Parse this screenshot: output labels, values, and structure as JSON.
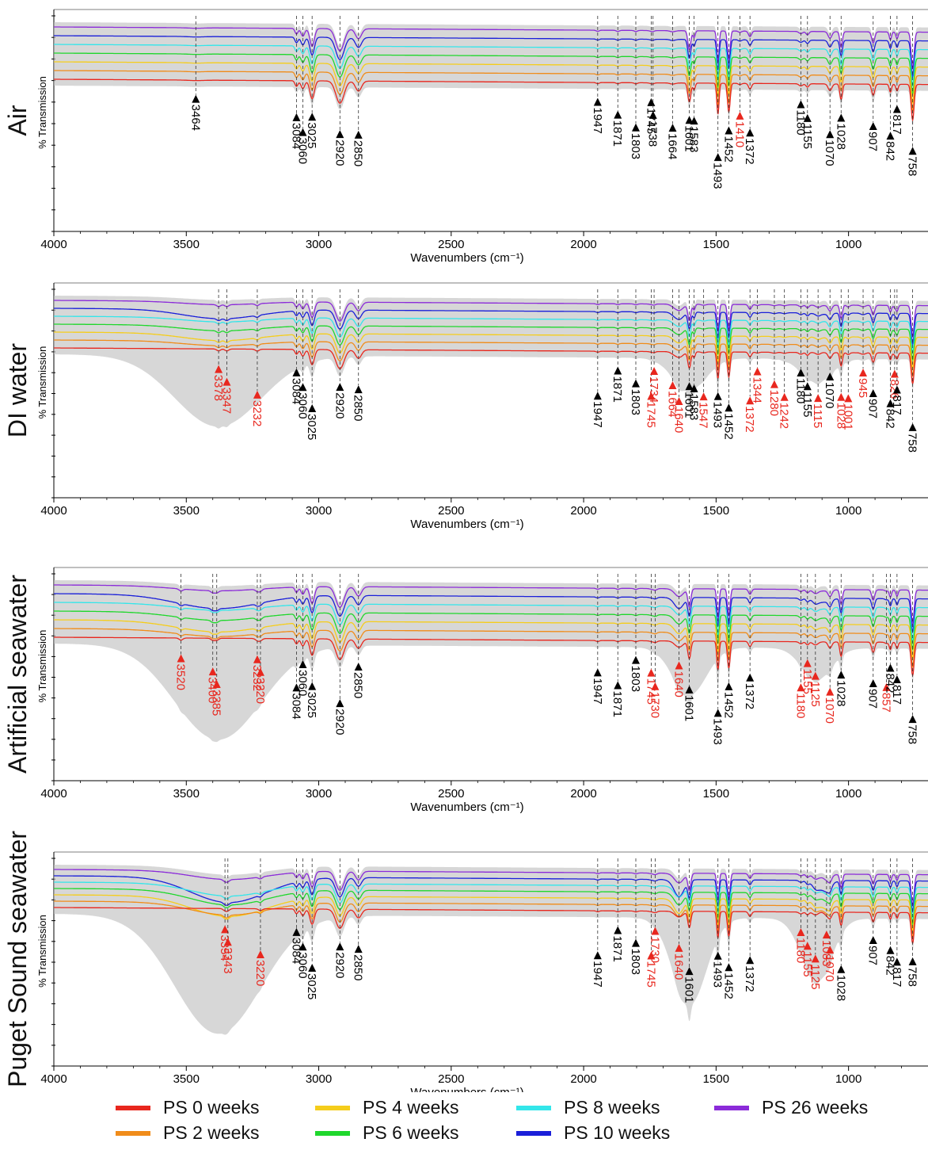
{
  "xlabel": "Wavenumbers (cm⁻¹)",
  "ylabel": "% Transmission",
  "xticks": [
    "4000",
    "3500",
    "3000",
    "2500",
    "2000",
    "1500",
    "1000"
  ],
  "series_colors": {
    "PS 0 weeks": "#e8271e",
    "PS 2 weeks": "#f08c1a",
    "PS 4 weeks": "#f5cd1b",
    "PS 6 weeks": "#1fd72c",
    "PS 8 weeks": "#33e6ea",
    "PS 10 weeks": "#1a1fd9",
    "PS 26 weeks": "#8b2bd9"
  },
  "legend": [
    {
      "label": "PS 0 weeks",
      "color": "#e8271e"
    },
    {
      "label": "PS 2 weeks",
      "color": "#f08c1a"
    },
    {
      "label": "PS 4 weeks",
      "color": "#f5cd1b"
    },
    {
      "label": "PS 6 weeks",
      "color": "#1fd72c"
    },
    {
      "label": "PS 8 weeks",
      "color": "#33e6ea"
    },
    {
      "label": "PS 10 weeks",
      "color": "#1a1fd9"
    },
    {
      "label": "PS 26 weeks",
      "color": "#8b2bd9"
    }
  ],
  "chart_data": [
    {
      "type": "line",
      "title": "Air",
      "xlim": [
        4000,
        700
      ],
      "xlabel": "Wavenumbers (cm⁻¹)",
      "ylabel": "% Transmission",
      "series": [
        "PS 0 weeks",
        "PS 2 weeks",
        "PS 4 weeks",
        "PS 6 weeks",
        "PS 8 weeks",
        "PS 10 weeks",
        "PS 26 weeks"
      ],
      "peaks": [
        {
          "wn": 3464,
          "label": "3464",
          "color": "black"
        },
        {
          "wn": 3084,
          "label": "3084",
          "color": "black"
        },
        {
          "wn": 3060,
          "label": "3060",
          "color": "black"
        },
        {
          "wn": 3025,
          "label": "3025",
          "color": "black"
        },
        {
          "wn": 2920,
          "label": "2920",
          "color": "black"
        },
        {
          "wn": 2850,
          "label": "2850",
          "color": "black"
        },
        {
          "wn": 1947,
          "label": "1947",
          "color": "black"
        },
        {
          "wn": 1871,
          "label": "1871",
          "color": "black"
        },
        {
          "wn": 1803,
          "label": "1803",
          "color": "black"
        },
        {
          "wn": 1745,
          "label": "1745",
          "color": "black"
        },
        {
          "wn": 1738,
          "label": "1738",
          "color": "black"
        },
        {
          "wn": 1664,
          "label": "1664",
          "color": "black"
        },
        {
          "wn": 1601,
          "label": "1601",
          "color": "black"
        },
        {
          "wn": 1583,
          "label": "1583",
          "color": "black"
        },
        {
          "wn": 1493,
          "label": "1493",
          "color": "black"
        },
        {
          "wn": 1452,
          "label": "1452",
          "color": "black"
        },
        {
          "wn": 1410,
          "label": "1410",
          "color": "red"
        },
        {
          "wn": 1372,
          "label": "1372",
          "color": "black"
        },
        {
          "wn": 1180,
          "label": "1180",
          "color": "black"
        },
        {
          "wn": 1155,
          "label": "1155",
          "color": "black"
        },
        {
          "wn": 1070,
          "label": "1070",
          "color": "black"
        },
        {
          "wn": 1028,
          "label": "1028",
          "color": "black"
        },
        {
          "wn": 907,
          "label": "907",
          "color": "black"
        },
        {
          "wn": 842,
          "label": "842",
          "color": "black"
        },
        {
          "wn": 817,
          "label": "817",
          "color": "black"
        },
        {
          "wn": 758,
          "label": "758",
          "color": "black"
        }
      ]
    },
    {
      "type": "line",
      "title": "DI water",
      "xlim": [
        4000,
        700
      ],
      "xlabel": "Wavenumbers (cm⁻¹)",
      "ylabel": "% Transmission",
      "series": [
        "PS 0 weeks",
        "PS 2 weeks",
        "PS 4 weeks",
        "PS 6 weeks",
        "PS 8 weeks",
        "PS 10 weeks",
        "PS 26 weeks"
      ],
      "peaks": [
        {
          "wn": 3378,
          "label": "3378",
          "color": "red"
        },
        {
          "wn": 3347,
          "label": "3347",
          "color": "red"
        },
        {
          "wn": 3232,
          "label": "3232",
          "color": "red"
        },
        {
          "wn": 3084,
          "label": "3084",
          "color": "black"
        },
        {
          "wn": 3060,
          "label": "3060",
          "color": "black"
        },
        {
          "wn": 3025,
          "label": "3025",
          "color": "black"
        },
        {
          "wn": 2920,
          "label": "2920",
          "color": "black"
        },
        {
          "wn": 2850,
          "label": "2850",
          "color": "black"
        },
        {
          "wn": 1947,
          "label": "1947",
          "color": "black"
        },
        {
          "wn": 1871,
          "label": "1871",
          "color": "black"
        },
        {
          "wn": 1803,
          "label": "1803",
          "color": "black"
        },
        {
          "wn": 1745,
          "label": "1745",
          "color": "red"
        },
        {
          "wn": 1734,
          "label": "1734",
          "color": "red"
        },
        {
          "wn": 1664,
          "label": "1664",
          "color": "red"
        },
        {
          "wn": 1640,
          "label": "1640",
          "color": "red"
        },
        {
          "wn": 1601,
          "label": "1601",
          "color": "black"
        },
        {
          "wn": 1583,
          "label": "1583",
          "color": "black"
        },
        {
          "wn": 1547,
          "label": "1547",
          "color": "red"
        },
        {
          "wn": 1493,
          "label": "1493",
          "color": "black"
        },
        {
          "wn": 1452,
          "label": "1452",
          "color": "black"
        },
        {
          "wn": 1372,
          "label": "1372",
          "color": "red"
        },
        {
          "wn": 1344,
          "label": "1344",
          "color": "red"
        },
        {
          "wn": 1280,
          "label": "1280",
          "color": "red"
        },
        {
          "wn": 1242,
          "label": "1242",
          "color": "red"
        },
        {
          "wn": 1180,
          "label": "1180",
          "color": "black"
        },
        {
          "wn": 1155,
          "label": "1155",
          "color": "black"
        },
        {
          "wn": 1115,
          "label": "1115",
          "color": "red"
        },
        {
          "wn": 1070,
          "label": "1070",
          "color": "black"
        },
        {
          "wn": 1028,
          "label": "1028",
          "color": "red"
        },
        {
          "wn": 1001,
          "label": "1001",
          "color": "red"
        },
        {
          "wn": 945,
          "label": "945",
          "color": "red"
        },
        {
          "wn": 907,
          "label": "907",
          "color": "black"
        },
        {
          "wn": 842,
          "label": "842",
          "color": "black"
        },
        {
          "wn": 826,
          "label": "826",
          "color": "red"
        },
        {
          "wn": 817,
          "label": "817",
          "color": "black"
        },
        {
          "wn": 758,
          "label": "758",
          "color": "black"
        }
      ]
    },
    {
      "type": "line",
      "title": "Artificial seawater",
      "xlim": [
        4000,
        700
      ],
      "xlabel": "Wavenumbers (cm⁻¹)",
      "ylabel": "% Transmission",
      "series": [
        "PS 0 weeks",
        "PS 2 weeks",
        "PS 4 weeks",
        "PS 6 weeks",
        "PS 8 weeks",
        "PS 10 weeks",
        "PS 26 weeks"
      ],
      "peaks": [
        {
          "wn": 3520,
          "label": "3520",
          "color": "red"
        },
        {
          "wn": 3400,
          "label": "3400",
          "color": "red"
        },
        {
          "wn": 3385,
          "label": "3385",
          "color": "red"
        },
        {
          "wn": 3232,
          "label": "3232",
          "color": "red"
        },
        {
          "wn": 3220,
          "label": "3220",
          "color": "red"
        },
        {
          "wn": 3084,
          "label": "3084",
          "color": "black"
        },
        {
          "wn": 3060,
          "label": "3060",
          "color": "black"
        },
        {
          "wn": 3025,
          "label": "3025",
          "color": "black"
        },
        {
          "wn": 2920,
          "label": "2920",
          "color": "black"
        },
        {
          "wn": 2850,
          "label": "2850",
          "color": "black"
        },
        {
          "wn": 1947,
          "label": "1947",
          "color": "black"
        },
        {
          "wn": 1871,
          "label": "1871",
          "color": "black"
        },
        {
          "wn": 1803,
          "label": "1803",
          "color": "black"
        },
        {
          "wn": 1745,
          "label": "1745",
          "color": "red"
        },
        {
          "wn": 1730,
          "label": "1730",
          "color": "red"
        },
        {
          "wn": 1640,
          "label": "1640",
          "color": "red"
        },
        {
          "wn": 1601,
          "label": "1601",
          "color": "black"
        },
        {
          "wn": 1493,
          "label": "1493",
          "color": "black"
        },
        {
          "wn": 1452,
          "label": "1452",
          "color": "black"
        },
        {
          "wn": 1372,
          "label": "1372",
          "color": "black"
        },
        {
          "wn": 1180,
          "label": "1180",
          "color": "red"
        },
        {
          "wn": 1155,
          "label": "1155",
          "color": "red"
        },
        {
          "wn": 1125,
          "label": "1125",
          "color": "red"
        },
        {
          "wn": 1070,
          "label": "1070",
          "color": "red"
        },
        {
          "wn": 1028,
          "label": "1028",
          "color": "black"
        },
        {
          "wn": 907,
          "label": "907",
          "color": "black"
        },
        {
          "wn": 857,
          "label": "857",
          "color": "red"
        },
        {
          "wn": 842,
          "label": "842",
          "color": "black"
        },
        {
          "wn": 817,
          "label": "817",
          "color": "black"
        },
        {
          "wn": 758,
          "label": "758",
          "color": "black"
        }
      ]
    },
    {
      "type": "line",
      "title": "Puget Sound seawater",
      "xlim": [
        4000,
        700
      ],
      "xlabel": "Wavenumbers (cm⁻¹)",
      "ylabel": "% Transmission",
      "series": [
        "PS 0 weeks",
        "PS 2 weeks",
        "PS 4 weeks",
        "PS 6 weeks",
        "PS 8 weeks",
        "PS 10 weeks",
        "PS 26 weeks"
      ],
      "peaks": [
        {
          "wn": 3354,
          "label": "3354",
          "color": "red"
        },
        {
          "wn": 3343,
          "label": "3343",
          "color": "red"
        },
        {
          "wn": 3220,
          "label": "3220",
          "color": "red"
        },
        {
          "wn": 3084,
          "label": "3084",
          "color": "black"
        },
        {
          "wn": 3060,
          "label": "3060",
          "color": "black"
        },
        {
          "wn": 3025,
          "label": "3025",
          "color": "black"
        },
        {
          "wn": 2920,
          "label": "2920",
          "color": "black"
        },
        {
          "wn": 2850,
          "label": "2850",
          "color": "black"
        },
        {
          "wn": 1947,
          "label": "1947",
          "color": "black"
        },
        {
          "wn": 1871,
          "label": "1871",
          "color": "black"
        },
        {
          "wn": 1803,
          "label": "1803",
          "color": "black"
        },
        {
          "wn": 1745,
          "label": "1745",
          "color": "red"
        },
        {
          "wn": 1730,
          "label": "1730",
          "color": "red"
        },
        {
          "wn": 1640,
          "label": "1640",
          "color": "red"
        },
        {
          "wn": 1601,
          "label": "1601",
          "color": "black"
        },
        {
          "wn": 1493,
          "label": "1493",
          "color": "black"
        },
        {
          "wn": 1452,
          "label": "1452",
          "color": "black"
        },
        {
          "wn": 1372,
          "label": "1372",
          "color": "black"
        },
        {
          "wn": 1180,
          "label": "1180",
          "color": "red"
        },
        {
          "wn": 1155,
          "label": "1155",
          "color": "red"
        },
        {
          "wn": 1125,
          "label": "1125",
          "color": "red"
        },
        {
          "wn": 1083,
          "label": "1083",
          "color": "red"
        },
        {
          "wn": 1070,
          "label": "1070",
          "color": "red"
        },
        {
          "wn": 1028,
          "label": "1028",
          "color": "black"
        },
        {
          "wn": 907,
          "label": "907",
          "color": "black"
        },
        {
          "wn": 842,
          "label": "842",
          "color": "black"
        },
        {
          "wn": 817,
          "label": "817",
          "color": "black"
        },
        {
          "wn": 758,
          "label": "758",
          "color": "black"
        }
      ]
    }
  ]
}
